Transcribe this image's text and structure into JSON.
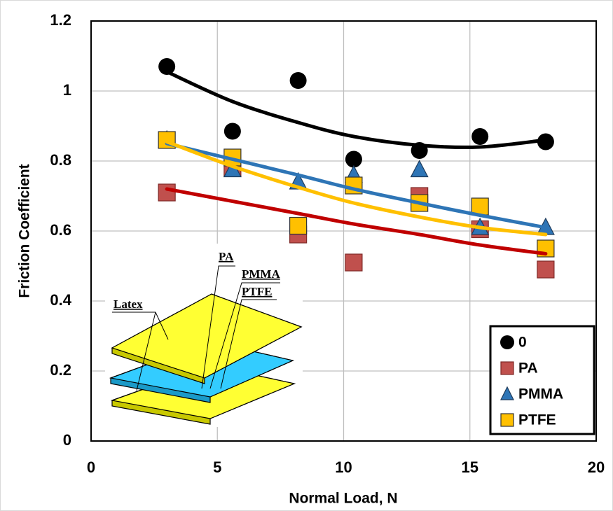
{
  "chart_data": {
    "type": "scatter",
    "x_label": "Normal Load, N",
    "y_label": "Friction Coefficient",
    "x": [
      3,
      5.6,
      8.2,
      10.4,
      13,
      15.4,
      18
    ],
    "series": [
      {
        "name": "0",
        "color": "#000000",
        "marker": "circle",
        "values": [
          1.07,
          0.885,
          1.03,
          0.805,
          0.83,
          0.87,
          0.855
        ],
        "trend": [
          1.055,
          0.97,
          0.91,
          0.87,
          0.845,
          0.84,
          0.86
        ]
      },
      {
        "name": "PA",
        "color": "#c0504d",
        "line_color": "#c00000",
        "marker": "square",
        "values": [
          0.71,
          0.78,
          0.59,
          0.51,
          0.7,
          0.605,
          0.49
        ],
        "trend": [
          0.72,
          0.685,
          0.65,
          0.62,
          0.59,
          0.56,
          0.535
        ]
      },
      {
        "name": "PMMA",
        "color": "#2e75b6",
        "line_color": "#2e75b6",
        "marker": "triangle",
        "values": [
          0.86,
          0.775,
          0.74,
          0.76,
          0.775,
          0.61,
          0.61
        ],
        "trend": [
          0.85,
          0.805,
          0.76,
          0.72,
          0.68,
          0.645,
          0.61
        ]
      },
      {
        "name": "PTFE",
        "color": "#ffc000",
        "line_color": "#ffc000",
        "marker": "square",
        "values": [
          0.86,
          0.81,
          0.615,
          0.73,
          0.68,
          0.67,
          0.55
        ],
        "trend": [
          0.855,
          0.785,
          0.725,
          0.68,
          0.64,
          0.61,
          0.59
        ]
      }
    ],
    "xlim": [
      0,
      20
    ],
    "xticks": [
      0,
      5,
      10,
      15,
      20
    ],
    "ylim": [
      0,
      1.2
    ],
    "yticks": [
      0,
      0.2,
      0.4,
      0.6,
      0.8,
      1,
      1.2
    ],
    "grid": true,
    "legend": "lower right"
  },
  "inset": {
    "labels": [
      "Latex",
      "PA",
      "PMMA",
      "PTFE"
    ]
  }
}
